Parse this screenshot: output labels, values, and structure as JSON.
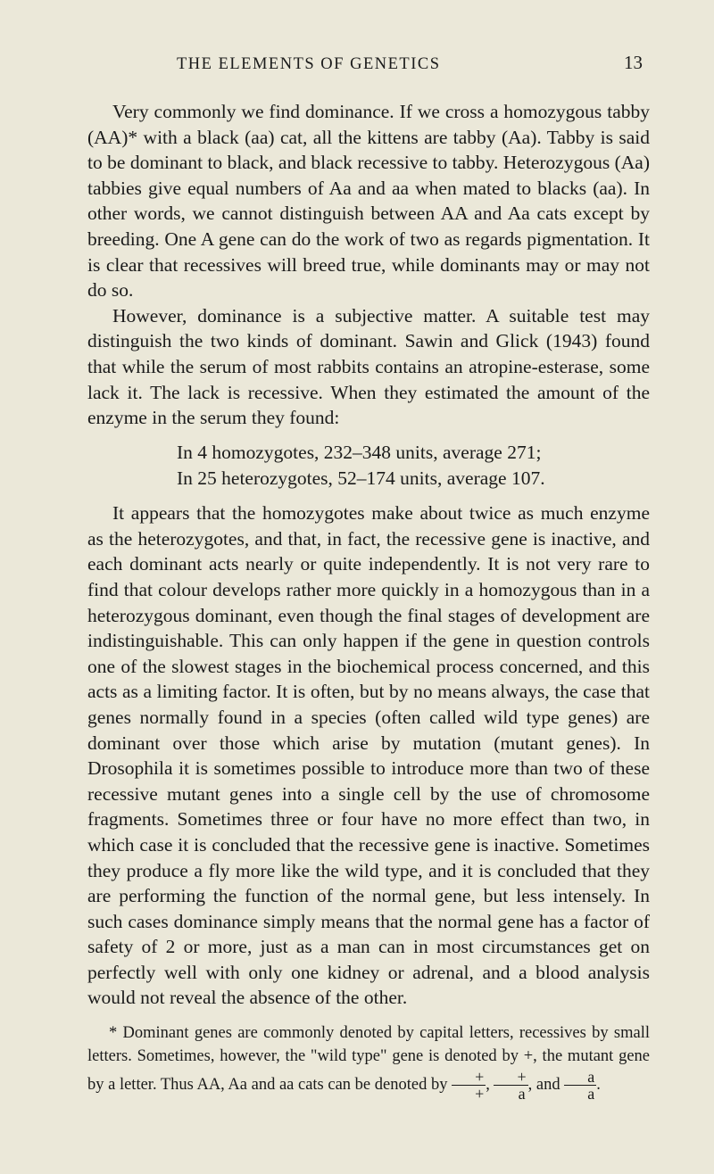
{
  "header": {
    "title": "THE ELEMENTS OF GENETICS",
    "page_number": "13"
  },
  "paragraphs": {
    "p1": "Very commonly we find dominance. If we cross a homozygous tabby (AA)* with a black (aa) cat, all the kittens are tabby (Aa). Tabby is said to be dominant to black, and black recessive to tabby. Heterozygous (Aa) tabbies give equal numbers of Aa and aa when mated to blacks (aa). In other words, we cannot distinguish between AA and Aa cats except by breeding. One A gene can do the work of two as regards pigmentation. It is clear that recessives will breed true, while dominants may or may not do so.",
    "p2": "However, dominance is a subjective matter. A suitable test may distinguish the two kinds of dominant. Sawin and Glick (1943) found that while the serum of most rabbits contains an atropine-esterase, some lack it. The lack is recessive. When they estimated the amount of the enzyme in the serum they found:",
    "block1": "In 4 homozygotes, 232–348 units, average 271;",
    "block2": "In 25 heterozygotes, 52–174 units, average 107.",
    "p3": "It appears that the homozygotes make about twice as much enzyme as the heterozygotes, and that, in fact, the recessive gene is inactive, and each dominant acts nearly or quite independently. It is not very rare to find that colour develops rather more quickly in a homozygous than in a heterozygous dominant, even though the final stages of development are indistinguishable. This can only happen if the gene in question controls one of the slowest stages in the biochemical process concerned, and this acts as a limiting factor. It is often, but by no means always, the case that genes normally found in a species (often called wild type genes) are dominant over those which arise by mutation (mutant genes). In Drosophila it is sometimes possible to introduce more than two of these recessive mutant genes into a single cell by the use of chromosome fragments. Sometimes three or four have no more effect than two, in which case it is concluded that the recessive gene is inactive. Sometimes they produce a fly more like the wild type, and it is concluded that they are performing the function of the normal gene, but less intensely. In such cases dominance simply means that the normal gene has a factor of safety of 2 or more, just as a man can in most circumstances get on perfectly well with only one kidney or adrenal, and a blood analysis would not reveal the absence of the other."
  },
  "footnote": {
    "text1": "* Dominant genes are commonly denoted by capital letters, recessives by small letters. Sometimes, however, the \"wild type\" gene is denoted by +, the mutant gene by a letter. Thus AA, Aa and aa cats can be denoted by ",
    "text2": ", and ",
    "text3": "."
  }
}
